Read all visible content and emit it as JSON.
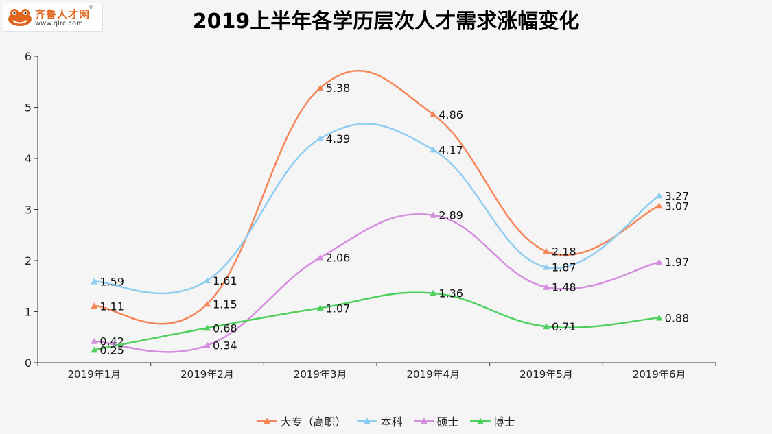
{
  "logo": {
    "name": "齐鲁人才网",
    "url": "www.qlrc.com",
    "registered": "®"
  },
  "chart_data": {
    "type": "line",
    "title": "2019上半年各学历层次人才需求涨幅变化",
    "xlabel": "",
    "ylabel": "",
    "categories": [
      "2019年1月",
      "2019年2月",
      "2019年3月",
      "2019年4月",
      "2019年5月",
      "2019年6月"
    ],
    "ylim": [
      0,
      6
    ],
    "yticks": [
      0,
      1,
      2,
      3,
      4,
      5,
      6
    ],
    "smooth": true,
    "marker": "triangle",
    "grid": false,
    "legend_position": "bottom",
    "series": [
      {
        "name": "大专（高职）",
        "color": "#f4865a",
        "values": [
          1.11,
          1.15,
          5.38,
          4.86,
          2.18,
          3.07
        ]
      },
      {
        "name": "本科",
        "color": "#8ecdf1",
        "values": [
          1.59,
          1.61,
          4.39,
          4.17,
          1.87,
          3.27
        ]
      },
      {
        "name": "硕士",
        "color": "#d58ddf",
        "values": [
          0.42,
          0.34,
          2.06,
          2.89,
          1.48,
          1.97
        ]
      },
      {
        "name": "博士",
        "color": "#4ed05e",
        "values": [
          0.25,
          0.68,
          1.07,
          1.36,
          0.71,
          0.88
        ]
      }
    ]
  }
}
